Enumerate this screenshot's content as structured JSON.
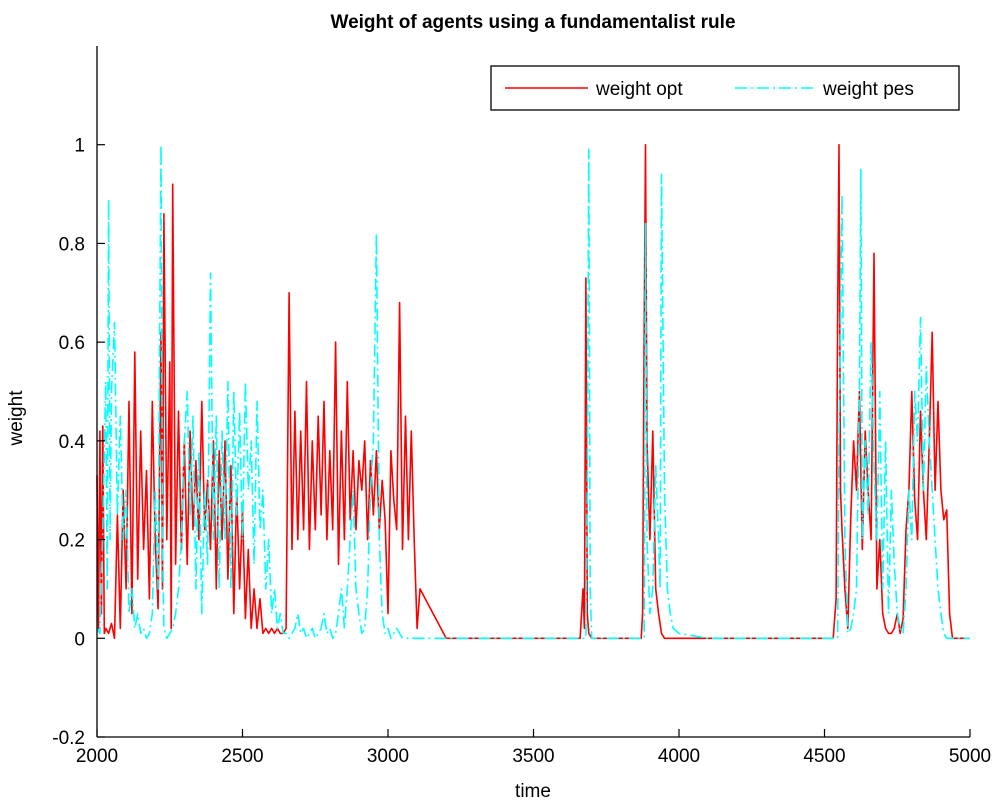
{
  "chart_data": {
    "type": "line",
    "title": "Weight of agents using a fundamentalist rule",
    "xlabel": "time",
    "ylabel": "weight",
    "xlim": [
      2000,
      5000
    ],
    "ylim": [
      -0.2,
      1.2
    ],
    "grid": false,
    "legend_position": "top-right",
    "x_ticks": [
      2000,
      2500,
      3000,
      3500,
      4000,
      4500,
      5000
    ],
    "x_tick_labels": [
      "2000",
      "2500",
      "3000",
      "3500",
      "4000",
      "4500",
      "5000"
    ],
    "y_ticks": [
      -0.2,
      0,
      0.2,
      0.4,
      0.6,
      0.8,
      1
    ],
    "y_tick_labels": [
      "-0.2",
      "0",
      "0.2",
      "0.4",
      "0.6",
      "0.8",
      "1"
    ],
    "series": [
      {
        "name": "weight opt",
        "color": "#ff0000",
        "style": "solid",
        "x": [
          2000,
          2005,
          2010,
          2015,
          2020,
          2025,
          2030,
          2040,
          2050,
          2060,
          2070,
          2080,
          2090,
          2100,
          2110,
          2120,
          2130,
          2140,
          2150,
          2160,
          2170,
          2180,
          2190,
          2200,
          2210,
          2220,
          2225,
          2230,
          2240,
          2250,
          2255,
          2260,
          2270,
          2280,
          2290,
          2300,
          2310,
          2320,
          2330,
          2340,
          2350,
          2360,
          2370,
          2380,
          2390,
          2400,
          2410,
          2420,
          2430,
          2440,
          2450,
          2460,
          2470,
          2480,
          2490,
          2500,
          2510,
          2520,
          2530,
          2540,
          2550,
          2560,
          2570,
          2580,
          2590,
          2600,
          2610,
          2620,
          2630,
          2640,
          2650,
          2660,
          2670,
          2680,
          2690,
          2700,
          2710,
          2720,
          2730,
          2740,
          2750,
          2760,
          2770,
          2780,
          2790,
          2800,
          2810,
          2820,
          2830,
          2840,
          2850,
          2860,
          2870,
          2880,
          2890,
          2900,
          2910,
          2920,
          2930,
          2940,
          2950,
          2960,
          2970,
          2980,
          2990,
          3000,
          3010,
          3020,
          3030,
          3040,
          3050,
          3060,
          3070,
          3080,
          3090,
          3100,
          3110,
          3200,
          3300,
          3400,
          3500,
          3600,
          3660,
          3670,
          3675,
          3680,
          3685,
          3690,
          3700,
          3800,
          3860,
          3870,
          3875,
          3880,
          3885,
          3890,
          3900,
          3910,
          3920,
          3930,
          3940,
          3950,
          3960,
          4000,
          4100,
          4200,
          4300,
          4400,
          4500,
          4530,
          4540,
          4545,
          4550,
          4555,
          4560,
          4570,
          4580,
          4590,
          4600,
          4610,
          4620,
          4630,
          4640,
          4650,
          4660,
          4670,
          4680,
          4690,
          4700,
          4710,
          4720,
          4730,
          4740,
          4750,
          4760,
          4770,
          4780,
          4790,
          4800,
          4810,
          4820,
          4830,
          4840,
          4850,
          4860,
          4870,
          4880,
          4890,
          4900,
          4910,
          4920,
          4930,
          4940,
          5000
        ],
        "y": [
          0.33,
          0.02,
          0.42,
          0.05,
          0.43,
          0.01,
          0.02,
          0.01,
          0.03,
          0.0,
          0.25,
          0.02,
          0.3,
          0.1,
          0.48,
          0.05,
          0.58,
          0.12,
          0.42,
          0.18,
          0.34,
          0.08,
          0.48,
          0.2,
          0.06,
          0.62,
          0.1,
          0.86,
          0.2,
          0.56,
          0.02,
          0.92,
          0.15,
          0.46,
          0.18,
          0.4,
          0.15,
          0.42,
          0.22,
          0.36,
          0.2,
          0.48,
          0.22,
          0.32,
          0.18,
          0.4,
          0.1,
          0.38,
          0.2,
          0.4,
          0.12,
          0.35,
          0.05,
          0.3,
          0.1,
          0.26,
          0.04,
          0.18,
          0.02,
          0.1,
          0.02,
          0.08,
          0.01,
          0.02,
          0.01,
          0.02,
          0.01,
          0.02,
          0.01,
          0.01,
          0.02,
          0.7,
          0.18,
          0.46,
          0.2,
          0.42,
          0.22,
          0.52,
          0.18,
          0.4,
          0.22,
          0.45,
          0.25,
          0.48,
          0.2,
          0.38,
          0.22,
          0.6,
          0.15,
          0.42,
          0.2,
          0.52,
          0.24,
          0.38,
          0.22,
          0.36,
          0.3,
          0.4,
          0.2,
          0.36,
          0.25,
          0.38,
          0.22,
          0.32,
          0.24,
          0.05,
          0.38,
          0.28,
          0.22,
          0.68,
          0.18,
          0.45,
          0.2,
          0.42,
          0.2,
          0.02,
          0.1,
          0.0,
          0.0,
          0.0,
          0.0,
          0.0,
          0.0,
          0.1,
          0.02,
          0.73,
          0.05,
          0.01,
          0.0,
          0.0,
          0.0,
          0.0,
          0.05,
          0.6,
          1.0,
          0.4,
          0.2,
          0.42,
          0.1,
          0.05,
          0.01,
          0.0,
          0.0,
          0.0,
          0.0,
          0.0,
          0.0,
          0.0,
          0.0,
          0.0,
          0.08,
          0.64,
          1.0,
          0.3,
          0.22,
          0.1,
          0.02,
          0.24,
          0.4,
          0.3,
          0.5,
          0.18,
          0.42,
          0.3,
          0.2,
          0.78,
          0.1,
          0.2,
          0.05,
          0.02,
          0.01,
          0.01,
          0.02,
          0.05,
          0.01,
          0.04,
          0.22,
          0.3,
          0.5,
          0.28,
          0.2,
          0.46,
          0.3,
          0.2,
          0.4,
          0.62,
          0.3,
          0.48,
          0.3,
          0.24,
          0.26,
          0.05,
          0.0,
          0.0
        ]
      },
      {
        "name": "weight pes",
        "color": "#00ffff",
        "style": "dashdot",
        "x": [
          2000,
          2010,
          2020,
          2030,
          2035,
          2040,
          2045,
          2050,
          2060,
          2070,
          2080,
          2090,
          2100,
          2110,
          2120,
          2130,
          2140,
          2150,
          2160,
          2170,
          2180,
          2190,
          2200,
          2210,
          2215,
          2220,
          2225,
          2230,
          2240,
          2250,
          2260,
          2270,
          2280,
          2290,
          2300,
          2310,
          2320,
          2330,
          2340,
          2350,
          2360,
          2370,
          2380,
          2390,
          2400,
          2410,
          2420,
          2430,
          2440,
          2450,
          2460,
          2470,
          2480,
          2490,
          2500,
          2510,
          2520,
          2530,
          2540,
          2550,
          2560,
          2570,
          2580,
          2590,
          2600,
          2610,
          2620,
          2630,
          2640,
          2650,
          2660,
          2670,
          2680,
          2690,
          2700,
          2710,
          2720,
          2730,
          2740,
          2750,
          2760,
          2770,
          2780,
          2790,
          2800,
          2810,
          2820,
          2830,
          2840,
          2850,
          2860,
          2870,
          2880,
          2890,
          2900,
          2910,
          2920,
          2930,
          2940,
          2950,
          2960,
          2970,
          2980,
          2990,
          3000,
          3010,
          3020,
          3030,
          3040,
          3050,
          3060,
          3070,
          3080,
          3090,
          3100,
          3200,
          3300,
          3400,
          3500,
          3600,
          3670,
          3680,
          3685,
          3690,
          3695,
          3700,
          3800,
          3860,
          3870,
          3880,
          3885,
          3890,
          3900,
          3910,
          3920,
          3930,
          3935,
          3940,
          3950,
          3960,
          3970,
          3980,
          4000,
          4100,
          4200,
          4300,
          4400,
          4500,
          4530,
          4540,
          4545,
          4550,
          4560,
          4570,
          4580,
          4590,
          4600,
          4610,
          4620,
          4625,
          4630,
          4640,
          4650,
          4660,
          4670,
          4680,
          4690,
          4700,
          4710,
          4720,
          4730,
          4740,
          4750,
          4760,
          4770,
          4780,
          4790,
          4800,
          4810,
          4820,
          4830,
          4840,
          4850,
          4860,
          4870,
          4880,
          4890,
          4900,
          4910,
          4920,
          4930,
          5000
        ],
        "y": [
          0.02,
          0.01,
          0.22,
          0.52,
          0.1,
          0.89,
          0.2,
          0.5,
          0.64,
          0.25,
          0.45,
          0.2,
          0.3,
          0.05,
          0.1,
          0.02,
          0.05,
          0.01,
          0.02,
          0.0,
          0.01,
          0.05,
          0.3,
          0.1,
          0.6,
          1.0,
          0.2,
          0.02,
          0.0,
          0.01,
          0.02,
          0.05,
          0.1,
          0.2,
          0.4,
          0.5,
          0.25,
          0.45,
          0.1,
          0.38,
          0.05,
          0.3,
          0.15,
          0.74,
          0.2,
          0.45,
          0.1,
          0.42,
          0.2,
          0.52,
          0.1,
          0.5,
          0.25,
          0.46,
          0.2,
          0.52,
          0.3,
          0.4,
          0.15,
          0.48,
          0.22,
          0.3,
          0.1,
          0.2,
          0.05,
          0.1,
          0.02,
          0.05,
          0.01,
          0.01,
          0.0,
          0.01,
          0.02,
          0.05,
          0.01,
          0.02,
          0.0,
          0.01,
          0.02,
          0.0,
          0.01,
          0.02,
          0.05,
          0.01,
          0.02,
          0.0,
          0.01,
          0.05,
          0.1,
          0.02,
          0.1,
          0.2,
          0.3,
          0.1,
          0.05,
          0.01,
          0.02,
          0.1,
          0.3,
          0.4,
          0.82,
          0.2,
          0.05,
          0.01,
          0.02,
          0.0,
          0.01,
          0.02,
          0.01,
          0.0,
          0.0,
          0.0,
          0.0,
          0.0,
          0.0,
          0.0,
          0.0,
          0.0,
          0.0,
          0.0,
          0.0,
          0.0,
          0.3,
          0.99,
          0.1,
          0.0,
          0.0,
          0.0,
          0.0,
          0.0,
          0.84,
          0.2,
          0.05,
          0.1,
          0.35,
          0.2,
          0.1,
          0.94,
          0.3,
          0.1,
          0.05,
          0.02,
          0.01,
          0.0,
          0.0,
          0.0,
          0.0,
          0.0,
          0.0,
          0.0,
          0.0,
          0.4,
          0.9,
          0.2,
          0.01,
          0.02,
          0.05,
          0.1,
          0.5,
          0.95,
          0.2,
          0.4,
          0.25,
          0.6,
          0.35,
          0.2,
          0.5,
          0.1,
          0.4,
          0.05,
          0.3,
          0.15,
          0.05,
          0.02,
          0.01,
          0.1,
          0.3,
          0.2,
          0.5,
          0.4,
          0.65,
          0.3,
          0.55,
          0.4,
          0.3,
          0.2,
          0.1,
          0.05,
          0.01,
          0.0,
          0.0,
          0.0
        ]
      }
    ]
  }
}
